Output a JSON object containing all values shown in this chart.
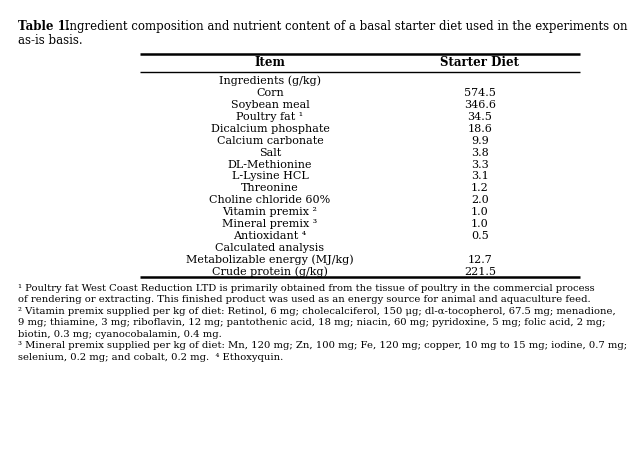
{
  "title_bold": "Table 1.",
  "title_rest": " Ingredient composition and nutrient content of a basal starter diet used in the experiments on",
  "title_line2": "as-is basis.",
  "col_headers": [
    "Item",
    "Starter Diet"
  ],
  "rows": [
    [
      "Ingredients (g/kg)",
      ""
    ],
    [
      "Corn",
      "574.5"
    ],
    [
      "Soybean meal",
      "346.6"
    ],
    [
      "Poultry fat ¹",
      "34.5"
    ],
    [
      "Dicalcium phosphate",
      "18.6"
    ],
    [
      "Calcium carbonate",
      "9.9"
    ],
    [
      "Salt",
      "3.8"
    ],
    [
      "DL-Methionine",
      "3.3"
    ],
    [
      "L-Lysine HCL",
      "3.1"
    ],
    [
      "Threonine",
      "1.2"
    ],
    [
      "Choline chloride 60%",
      "2.0"
    ],
    [
      "Vitamin premix ²",
      "1.0"
    ],
    [
      "Mineral premix ³",
      "1.0"
    ],
    [
      "Antioxidant ⁴",
      "0.5"
    ],
    [
      "Calculated analysis",
      ""
    ],
    [
      "Metabolizable energy (MJ/kg)",
      "12.7"
    ],
    [
      "Crude protein (g/kg)",
      "221.5"
    ]
  ],
  "footnote1": "¹ Poultry fat West Coast Reduction LTD is primarily obtained from the tissue of poultry in the commercial process",
  "footnote1b": "of rendering or extracting. This finished product was used as an energy source for animal and aquaculture feed.",
  "footnote2": "² Vitamin premix supplied per kg of diet: Retinol, 6 mg; cholecalciferol, 150 μg; dl-α-tocopherol, 67.5 mg; menadione,",
  "footnote2b": "9 mg; thiamine, 3 mg; riboflavin, 12 mg; pantothenic acid, 18 mg; niacin, 60 mg; pyridoxine, 5 mg; folic acid, 2 mg;",
  "footnote2c": "biotin, 0.3 mg; cyanocobalamin, 0.4 mg.",
  "footnote3": "³ Mineral premix supplied per kg of diet: Mn, 120 mg; Zn, 100 mg; Fe, 120 mg; copper, 10 mg to 15 mg; iodine, 0.7 mg;",
  "footnote3b": "selenium, 0.2 mg; and cobalt, 0.2 mg.  ⁴ Ethoxyquin.",
  "bg_color": "#ffffff",
  "text_color": "#000000",
  "font_size": 8.0,
  "header_font_size": 8.5,
  "title_font_size": 8.5,
  "footnote_font_size": 7.2
}
